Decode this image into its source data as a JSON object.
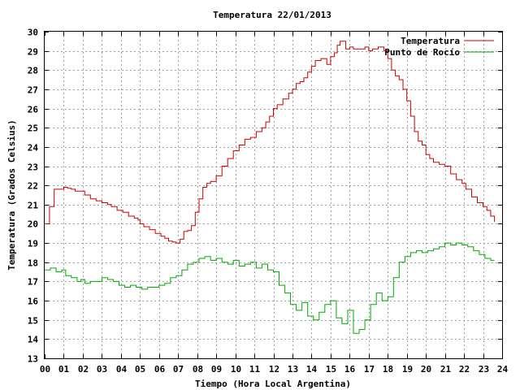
{
  "chart_data": {
    "type": "line",
    "title": "Temperatura 22/01/2013",
    "xlabel": "Tiempo (Hora Local Argentina)",
    "ylabel": "Temperatura (Grados Celsius)",
    "xlim": [
      0,
      24
    ],
    "ylim": [
      13,
      30
    ],
    "x_ticks": [
      "00",
      "01",
      "02",
      "03",
      "04",
      "05",
      "06",
      "07",
      "08",
      "09",
      "10",
      "11",
      "12",
      "13",
      "14",
      "15",
      "16",
      "17",
      "18",
      "19",
      "20",
      "21",
      "22",
      "23",
      "24"
    ],
    "y_ticks": [
      13,
      14,
      15,
      16,
      17,
      18,
      19,
      20,
      21,
      22,
      23,
      24,
      25,
      26,
      27,
      28,
      29,
      30
    ],
    "grid": true,
    "legend_position": "top-right",
    "series": [
      {
        "name": "Temperatura",
        "color": "#cc0000",
        "x": [
          0.0,
          0.25,
          0.5,
          0.8,
          1.0,
          1.2,
          1.4,
          1.6,
          1.9,
          2.1,
          2.4,
          2.7,
          3.0,
          3.3,
          3.5,
          3.8,
          4.1,
          4.4,
          4.7,
          4.9,
          5.0,
          5.2,
          5.5,
          5.8,
          6.1,
          6.3,
          6.5,
          6.7,
          6.9,
          7.1,
          7.3,
          7.5,
          7.7,
          7.9,
          8.1,
          8.3,
          8.5,
          8.7,
          9.0,
          9.3,
          9.6,
          9.9,
          10.2,
          10.5,
          10.8,
          11.1,
          11.4,
          11.6,
          11.8,
          12.0,
          12.2,
          12.5,
          12.8,
          13.0,
          13.2,
          13.4,
          13.6,
          13.8,
          14.0,
          14.2,
          14.5,
          14.8,
          15.0,
          15.2,
          15.35,
          15.5,
          15.8,
          16.0,
          16.2,
          16.5,
          16.8,
          17.0,
          17.2,
          17.5,
          17.8,
          18.0,
          18.2,
          18.4,
          18.6,
          18.8,
          19.0,
          19.2,
          19.4,
          19.6,
          19.8,
          20.0,
          20.2,
          20.4,
          20.7,
          21.0,
          21.3,
          21.6,
          21.9,
          22.1,
          22.4,
          22.7,
          23.0,
          23.2,
          23.4,
          23.6
        ],
        "values": [
          20.0,
          20.9,
          21.8,
          21.8,
          21.9,
          21.85,
          21.8,
          21.7,
          21.7,
          21.5,
          21.3,
          21.2,
          21.1,
          21.0,
          20.9,
          20.7,
          20.6,
          20.4,
          20.3,
          20.2,
          20.0,
          19.85,
          19.7,
          19.5,
          19.35,
          19.25,
          19.1,
          19.05,
          19.0,
          19.2,
          19.6,
          19.65,
          19.9,
          20.6,
          21.3,
          21.9,
          22.1,
          22.2,
          22.5,
          23.0,
          23.4,
          23.8,
          24.1,
          24.4,
          24.5,
          24.8,
          25.0,
          25.3,
          25.6,
          26.0,
          26.2,
          26.5,
          26.8,
          27.0,
          27.3,
          27.4,
          27.6,
          27.9,
          28.2,
          28.5,
          28.6,
          28.3,
          28.7,
          28.9,
          29.3,
          29.5,
          29.1,
          29.2,
          29.1,
          29.1,
          29.2,
          29.0,
          29.1,
          29.2,
          29.0,
          28.6,
          28.0,
          27.7,
          27.5,
          27.0,
          26.4,
          25.6,
          24.8,
          24.3,
          24.1,
          23.6,
          23.4,
          23.2,
          23.1,
          23.0,
          22.6,
          22.3,
          22.1,
          21.8,
          21.4,
          21.1,
          20.9,
          20.7,
          20.4,
          20.1
        ]
      },
      {
        "name": "Punto de Rocío",
        "color": "#00aa00",
        "x": [
          0.0,
          0.3,
          0.6,
          0.9,
          1.1,
          1.4,
          1.7,
          1.9,
          2.1,
          2.4,
          2.7,
          3.0,
          3.3,
          3.6,
          3.9,
          4.2,
          4.5,
          4.8,
          5.1,
          5.4,
          5.7,
          6.0,
          6.3,
          6.6,
          6.9,
          7.2,
          7.5,
          7.8,
          8.1,
          8.4,
          8.7,
          9.0,
          9.3,
          9.6,
          9.9,
          10.2,
          10.5,
          10.8,
          11.1,
          11.4,
          11.7,
          12.0,
          12.3,
          12.6,
          12.9,
          13.2,
          13.5,
          13.8,
          14.1,
          14.4,
          14.7,
          15.0,
          15.3,
          15.6,
          15.9,
          16.2,
          16.5,
          16.8,
          17.1,
          17.4,
          17.7,
          18.0,
          18.3,
          18.6,
          18.9,
          19.2,
          19.5,
          19.8,
          20.1,
          20.4,
          20.7,
          21.0,
          21.3,
          21.6,
          21.9,
          22.2,
          22.5,
          22.8,
          23.1,
          23.4,
          23.6
        ],
        "values": [
          17.6,
          17.7,
          17.5,
          17.6,
          17.3,
          17.2,
          17.0,
          17.1,
          16.9,
          17.0,
          17.0,
          17.2,
          17.1,
          17.0,
          16.8,
          16.7,
          16.8,
          16.7,
          16.6,
          16.7,
          16.7,
          16.8,
          16.9,
          17.2,
          17.3,
          17.6,
          17.9,
          18.0,
          18.2,
          18.3,
          18.1,
          18.2,
          18.0,
          17.9,
          18.1,
          17.8,
          17.9,
          18.0,
          17.7,
          17.9,
          17.6,
          17.5,
          16.8,
          16.4,
          15.8,
          15.5,
          15.9,
          15.2,
          15.0,
          15.4,
          15.8,
          16.0,
          15.1,
          14.8,
          15.5,
          14.3,
          14.5,
          15.0,
          15.8,
          16.4,
          16.0,
          16.2,
          17.2,
          18.0,
          18.3,
          18.5,
          18.6,
          18.5,
          18.6,
          18.7,
          18.8,
          19.0,
          18.9,
          19.0,
          18.9,
          18.8,
          18.6,
          18.4,
          18.2,
          18.1,
          18.1
        ]
      }
    ]
  }
}
